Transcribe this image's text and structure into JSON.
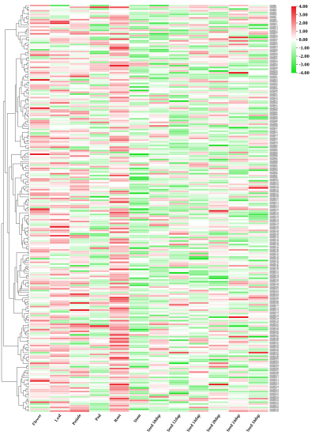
{
  "chart_data": {
    "type": "heatmap",
    "title": "",
    "xlabel": "",
    "ylabel": "",
    "columns": [
      "Flower",
      "Leaf",
      "Petiole",
      "Pod",
      "Root",
      "Stem",
      "Seed 10dap",
      "Seed 12dap",
      "Seed 14dap",
      "Seed 20dap",
      "Seed 24dap",
      "Seed 34dap"
    ],
    "row_count": 230,
    "row_prefix": "MtABI",
    "colorbar": {
      "position": "top-right",
      "ticks": [
        "4.00",
        "3.00",
        "2.00",
        "1.00",
        "0.00",
        "-1.00",
        "-2.00",
        "-3.00",
        "-4.00"
      ],
      "range": [
        -4,
        4
      ],
      "high_color": "#e8141c",
      "mid_color": "#ffffff",
      "low_color": "#12e01a"
    },
    "dendrogram": {
      "side": "left",
      "visible": true
    },
    "column_profile": [
      0.3,
      0.4,
      0.1,
      -0.5,
      0.8,
      -0.8,
      -0.4,
      -0.5,
      -0.4,
      -0.2,
      -0.3,
      -0.5
    ]
  }
}
